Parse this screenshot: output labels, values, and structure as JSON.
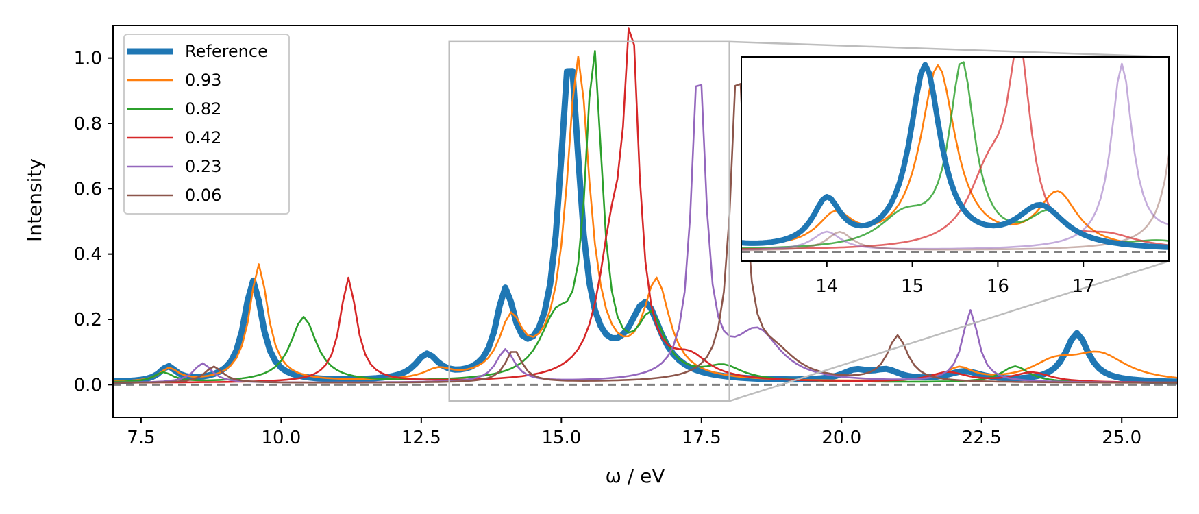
{
  "chart_data": {
    "type": "line",
    "xlabel": "ω / eV",
    "ylabel": "Intensity",
    "xlim": [
      7.0,
      26.0
    ],
    "ylim": [
      -0.1,
      1.1
    ],
    "xticks": [
      "7.5",
      "10.0",
      "12.5",
      "15.0",
      "17.5",
      "20.0",
      "22.5",
      "25.0"
    ],
    "yticks": [
      "0.0",
      "0.2",
      "0.4",
      "0.6",
      "0.8",
      "1.0"
    ],
    "baseline": 0.0,
    "legend_position": "upper-left",
    "series": [
      {
        "name": "Reference",
        "color": "#1f77b4",
        "peaks": [
          [
            7.98,
            0.045,
            0.18
          ],
          [
            9.5,
            0.31,
            0.2
          ],
          [
            12.6,
            0.075,
            0.25
          ],
          [
            14.0,
            0.25,
            0.2
          ],
          [
            15.15,
            0.98,
            0.22
          ],
          [
            16.5,
            0.22,
            0.35
          ],
          [
            20.25,
            0.03,
            0.3
          ],
          [
            20.8,
            0.03,
            0.3
          ],
          [
            22.2,
            0.03,
            0.4
          ],
          [
            24.2,
            0.15,
            0.25
          ]
        ]
      },
      {
        "name": "0.93",
        "color": "#ff7f0e",
        "peaks": [
          [
            8.0,
            0.04,
            0.2
          ],
          [
            9.6,
            0.36,
            0.2
          ],
          [
            12.8,
            0.03,
            0.3
          ],
          [
            14.1,
            0.17,
            0.25
          ],
          [
            15.3,
            0.98,
            0.25
          ],
          [
            16.7,
            0.29,
            0.28
          ],
          [
            22.1,
            0.04,
            0.3
          ],
          [
            23.8,
            0.05,
            0.5
          ],
          [
            24.6,
            0.08,
            0.6
          ]
        ]
      },
      {
        "name": "0.82",
        "color": "#2ca02c",
        "peaks": [
          [
            7.9,
            0.03,
            0.2
          ],
          [
            10.4,
            0.2,
            0.28
          ],
          [
            14.9,
            0.16,
            0.35
          ],
          [
            15.58,
            0.98,
            0.18
          ],
          [
            16.6,
            0.18,
            0.3
          ],
          [
            17.9,
            0.04,
            0.4
          ],
          [
            23.1,
            0.05,
            0.3
          ]
        ]
      },
      {
        "name": "0.42",
        "color": "#d62728",
        "peaks": [
          [
            11.2,
            0.32,
            0.18
          ],
          [
            15.9,
            0.37,
            0.3
          ],
          [
            16.25,
            0.98,
            0.16
          ],
          [
            17.3,
            0.06,
            0.4
          ],
          [
            21.9,
            0.03,
            0.4
          ],
          [
            23.4,
            0.03,
            0.4
          ]
        ]
      },
      {
        "name": "0.23",
        "color": "#9467bd",
        "peaks": [
          [
            8.6,
            0.06,
            0.2
          ],
          [
            14.0,
            0.1,
            0.2
          ],
          [
            17.45,
            0.98,
            0.15
          ],
          [
            18.5,
            0.15,
            0.5
          ],
          [
            22.3,
            0.22,
            0.17
          ]
        ]
      },
      {
        "name": "0.06",
        "color": "#8c564b",
        "peaks": [
          [
            8.8,
            0.05,
            0.2
          ],
          [
            14.15,
            0.1,
            0.18
          ],
          [
            18.15,
            0.98,
            0.15
          ],
          [
            18.8,
            0.08,
            0.5
          ],
          [
            21.0,
            0.14,
            0.22
          ]
        ]
      }
    ],
    "inset": {
      "xlim": [
        13.0,
        18.0
      ],
      "ylim": [
        -0.05,
        1.05
      ],
      "xticks": [
        "14",
        "15",
        "16",
        "17"
      ]
    }
  }
}
